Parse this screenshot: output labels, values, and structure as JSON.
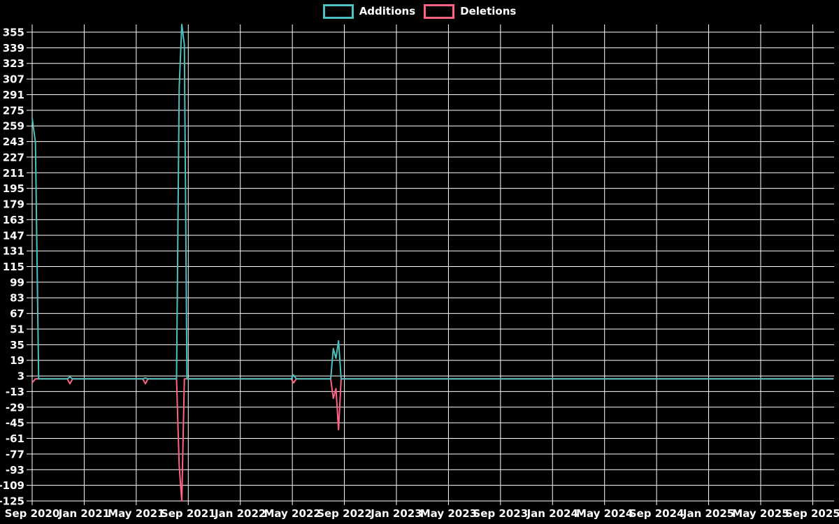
{
  "legend": {
    "position": "top-center",
    "items": [
      {
        "label": "Additions",
        "color": "#4bc0c0"
      },
      {
        "label": "Deletions",
        "color": "#ff6384"
      }
    ]
  },
  "chart_data": {
    "type": "line",
    "title": "",
    "xlabel": "",
    "ylabel": "",
    "background": "#000000",
    "grid": {
      "visible": true,
      "color": "#ffffff"
    },
    "text_color": "#ffffff",
    "y_axis": {
      "min": -125,
      "max": 355,
      "tick_step": 16,
      "ticks": [
        355,
        339,
        323,
        307,
        291,
        275,
        259,
        243,
        227,
        211,
        195,
        179,
        163,
        147,
        131,
        115,
        99,
        83,
        67,
        51,
        35,
        19,
        3,
        -13,
        -29,
        -45,
        -61,
        -77,
        -93,
        -109,
        -125
      ]
    },
    "x_axis": {
      "unit": "months since Sep 2020",
      "tick_interval_months": 4,
      "tick_labels": [
        "Sep 2020",
        "Jan 2021",
        "May 2021",
        "Sep 2021",
        "Jan 2022",
        "May 2022",
        "Sep 2022",
        "Jan 2023",
        "May 2023",
        "Sep 2023",
        "Jan 2024",
        "May 2024",
        "Sep 2024",
        "Jan 2025",
        "May 2025",
        "Sep 2025"
      ],
      "range_months": [
        0,
        61.6
      ]
    },
    "series": [
      {
        "name": "Additions",
        "color": "#4bc0c0",
        "peak_clipped_at_top": true,
        "points": [
          [
            0,
            267
          ],
          [
            0.25,
            242
          ],
          [
            0.5,
            0
          ],
          [
            2.7,
            0
          ],
          [
            2.9,
            2
          ],
          [
            3.1,
            0
          ],
          [
            8.5,
            0
          ],
          [
            8.7,
            1
          ],
          [
            8.9,
            0
          ],
          [
            11.1,
            0
          ],
          [
            11.3,
            298
          ],
          [
            11.5,
            363
          ],
          [
            11.7,
            342
          ],
          [
            11.9,
            0
          ],
          [
            19.9,
            0
          ],
          [
            20.1,
            4
          ],
          [
            20.3,
            0
          ],
          [
            22.95,
            0
          ],
          [
            23.15,
            31
          ],
          [
            23.35,
            21
          ],
          [
            23.55,
            39
          ],
          [
            23.75,
            0
          ],
          [
            61.6,
            0
          ]
        ]
      },
      {
        "name": "Deletions",
        "color": "#ff6384",
        "points": [
          [
            0,
            -4
          ],
          [
            0.25,
            0
          ],
          [
            2.7,
            0
          ],
          [
            2.9,
            -5
          ],
          [
            3.1,
            0
          ],
          [
            8.5,
            0
          ],
          [
            8.7,
            -5
          ],
          [
            8.9,
            0
          ],
          [
            11.1,
            0
          ],
          [
            11.3,
            -89
          ],
          [
            11.5,
            -125
          ],
          [
            11.7,
            0
          ],
          [
            19.9,
            0
          ],
          [
            20.1,
            -4
          ],
          [
            20.3,
            0
          ],
          [
            22.95,
            0
          ],
          [
            23.15,
            -20
          ],
          [
            23.35,
            -10
          ],
          [
            23.55,
            -52
          ],
          [
            23.75,
            0
          ],
          [
            61.6,
            0
          ]
        ]
      }
    ]
  }
}
